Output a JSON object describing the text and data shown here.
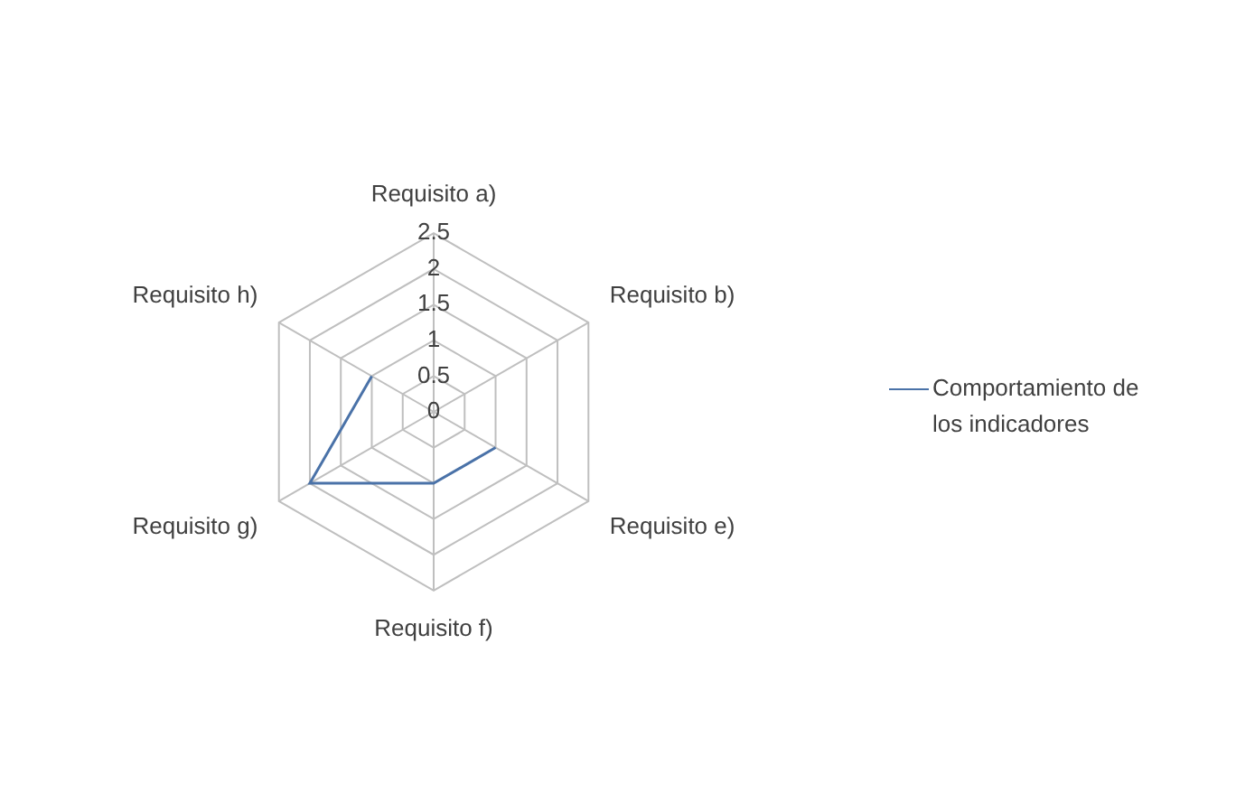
{
  "chart_data": {
    "type": "radar",
    "categories": [
      "Requisito a)",
      "Requisito b)",
      "Requisito e)",
      "Requisito f)",
      "Requisito g)",
      "Requisito h)"
    ],
    "series": [
      {
        "name": "Comportamiento de los indicadores",
        "color": "#4a72a8",
        "values": [
          null,
          null,
          1,
          1,
          2,
          1
        ]
      }
    ],
    "ylim": [
      0,
      2.5
    ],
    "yticks": [
      0,
      0.5,
      1,
      1.5,
      2,
      2.5
    ],
    "grid": true,
    "legend": "right",
    "marker": "none"
  }
}
